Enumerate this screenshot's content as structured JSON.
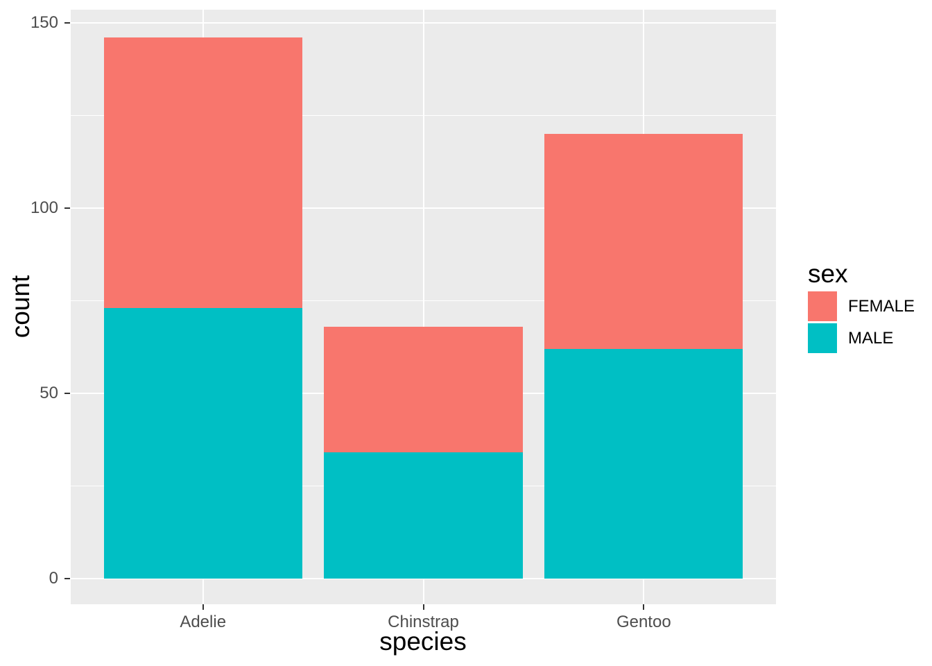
{
  "figure": {
    "background": "#FFFFFF",
    "panel_background": "#EBEBEB",
    "gridline_color": "#FFFFFF",
    "tick_mark_color": "#333333",
    "tick_label_color": "#4D4D4D",
    "title_color": "#000000"
  },
  "chart_data": {
    "type": "bar",
    "stacked": true,
    "title": "",
    "xlabel": "species",
    "ylabel": "count",
    "categories": [
      "Adelie",
      "Chinstrap",
      "Gentoo"
    ],
    "series": [
      {
        "name": "FEMALE",
        "color": "#F8766D",
        "values": [
          73,
          34,
          58
        ]
      },
      {
        "name": "MALE",
        "color": "#00BFC4",
        "values": [
          73,
          34,
          62
        ]
      }
    ],
    "totals": [
      146,
      68,
      120
    ],
    "ylim": [
      0,
      150
    ],
    "yticks": [
      0,
      50,
      100,
      150
    ],
    "yticks_minor": [
      25,
      75,
      125
    ],
    "grid": true,
    "legend": {
      "title": "sex",
      "position": "right",
      "entries": [
        "FEMALE",
        "MALE"
      ]
    }
  }
}
